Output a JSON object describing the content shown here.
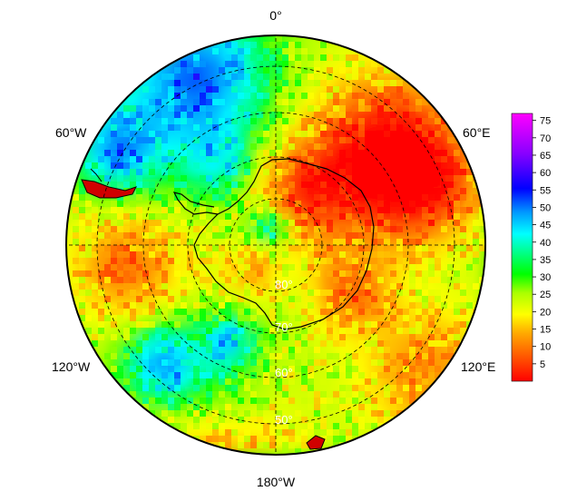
{
  "map": {
    "type": "south-polar-stereographic-field",
    "longitude_labels": {
      "top": "0°",
      "left_upper": "60°W",
      "right_upper": "60°E",
      "left_lower": "120°W",
      "right_lower": "120°E",
      "bottom": "180°W"
    },
    "latitude_labels": [
      "80°",
      "70°",
      "60°",
      "50°"
    ],
    "graticule_latitudes": [
      80,
      70,
      60,
      50
    ],
    "graticule_longitudes": [
      0,
      30,
      60,
      90,
      120,
      150,
      180,
      210,
      240,
      270,
      300,
      330
    ],
    "colorbar": {
      "min": 0,
      "max": 77,
      "ticks": [
        "75",
        "70",
        "65",
        "60",
        "55",
        "50",
        "45",
        "40",
        "35",
        "30",
        "25",
        "20",
        "15",
        "10",
        "5"
      ],
      "tick_values": [
        75,
        70,
        65,
        60,
        55,
        50,
        45,
        40,
        35,
        30,
        25,
        20,
        15,
        10,
        5
      ],
      "colors": [
        "#ff0000",
        "#ff6600",
        "#ffcc00",
        "#ffff00",
        "#99ff00",
        "#00ff00",
        "#00ff99",
        "#00ffff",
        "#0099ff",
        "#0000ff",
        "#9900ff",
        "#ff00ff"
      ]
    },
    "regions_colors": {
      "high_red": "#ff1a00",
      "orange": "#ff7a00",
      "yellow": "#ffee00",
      "green": "#33ee00",
      "cyan": "#00e5e0",
      "blue": "#1a55ff",
      "purple": "#7a00e0"
    }
  }
}
